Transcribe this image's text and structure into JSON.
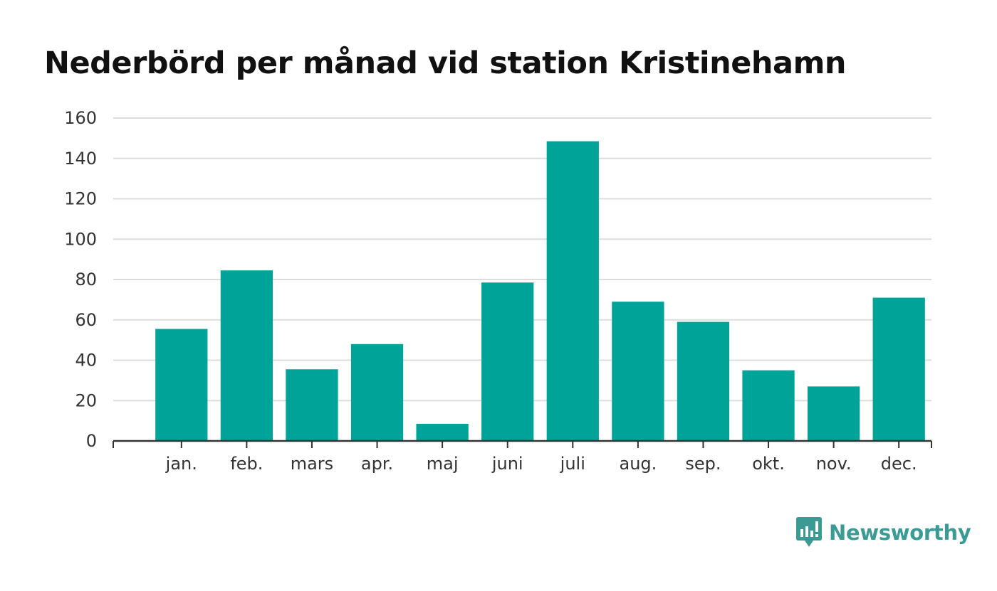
{
  "title": "Nederbörd per månad vid station Kristinehamn",
  "brand": {
    "name": "Newsworthy"
  },
  "colors": {
    "bar": "#00a398",
    "grid": "#dddddd",
    "axis": "#333333",
    "brand": "#3a9b94"
  },
  "chart_data": {
    "type": "bar",
    "title": "Nederbörd per månad vid station Kristinehamn",
    "xlabel": "",
    "ylabel": "",
    "categories": [
      "jan.",
      "feb.",
      "mars",
      "apr.",
      "maj",
      "juni",
      "juli",
      "aug.",
      "sep.",
      "okt.",
      "nov.",
      "dec."
    ],
    "values": [
      55.5,
      84.5,
      35.5,
      48,
      8.5,
      78.5,
      148.5,
      69,
      59,
      35,
      27,
      71
    ],
    "ylim": [
      0,
      160
    ],
    "yticks": [
      0,
      20,
      40,
      60,
      80,
      100,
      120,
      140,
      160
    ],
    "grid": true,
    "legend": "none"
  }
}
